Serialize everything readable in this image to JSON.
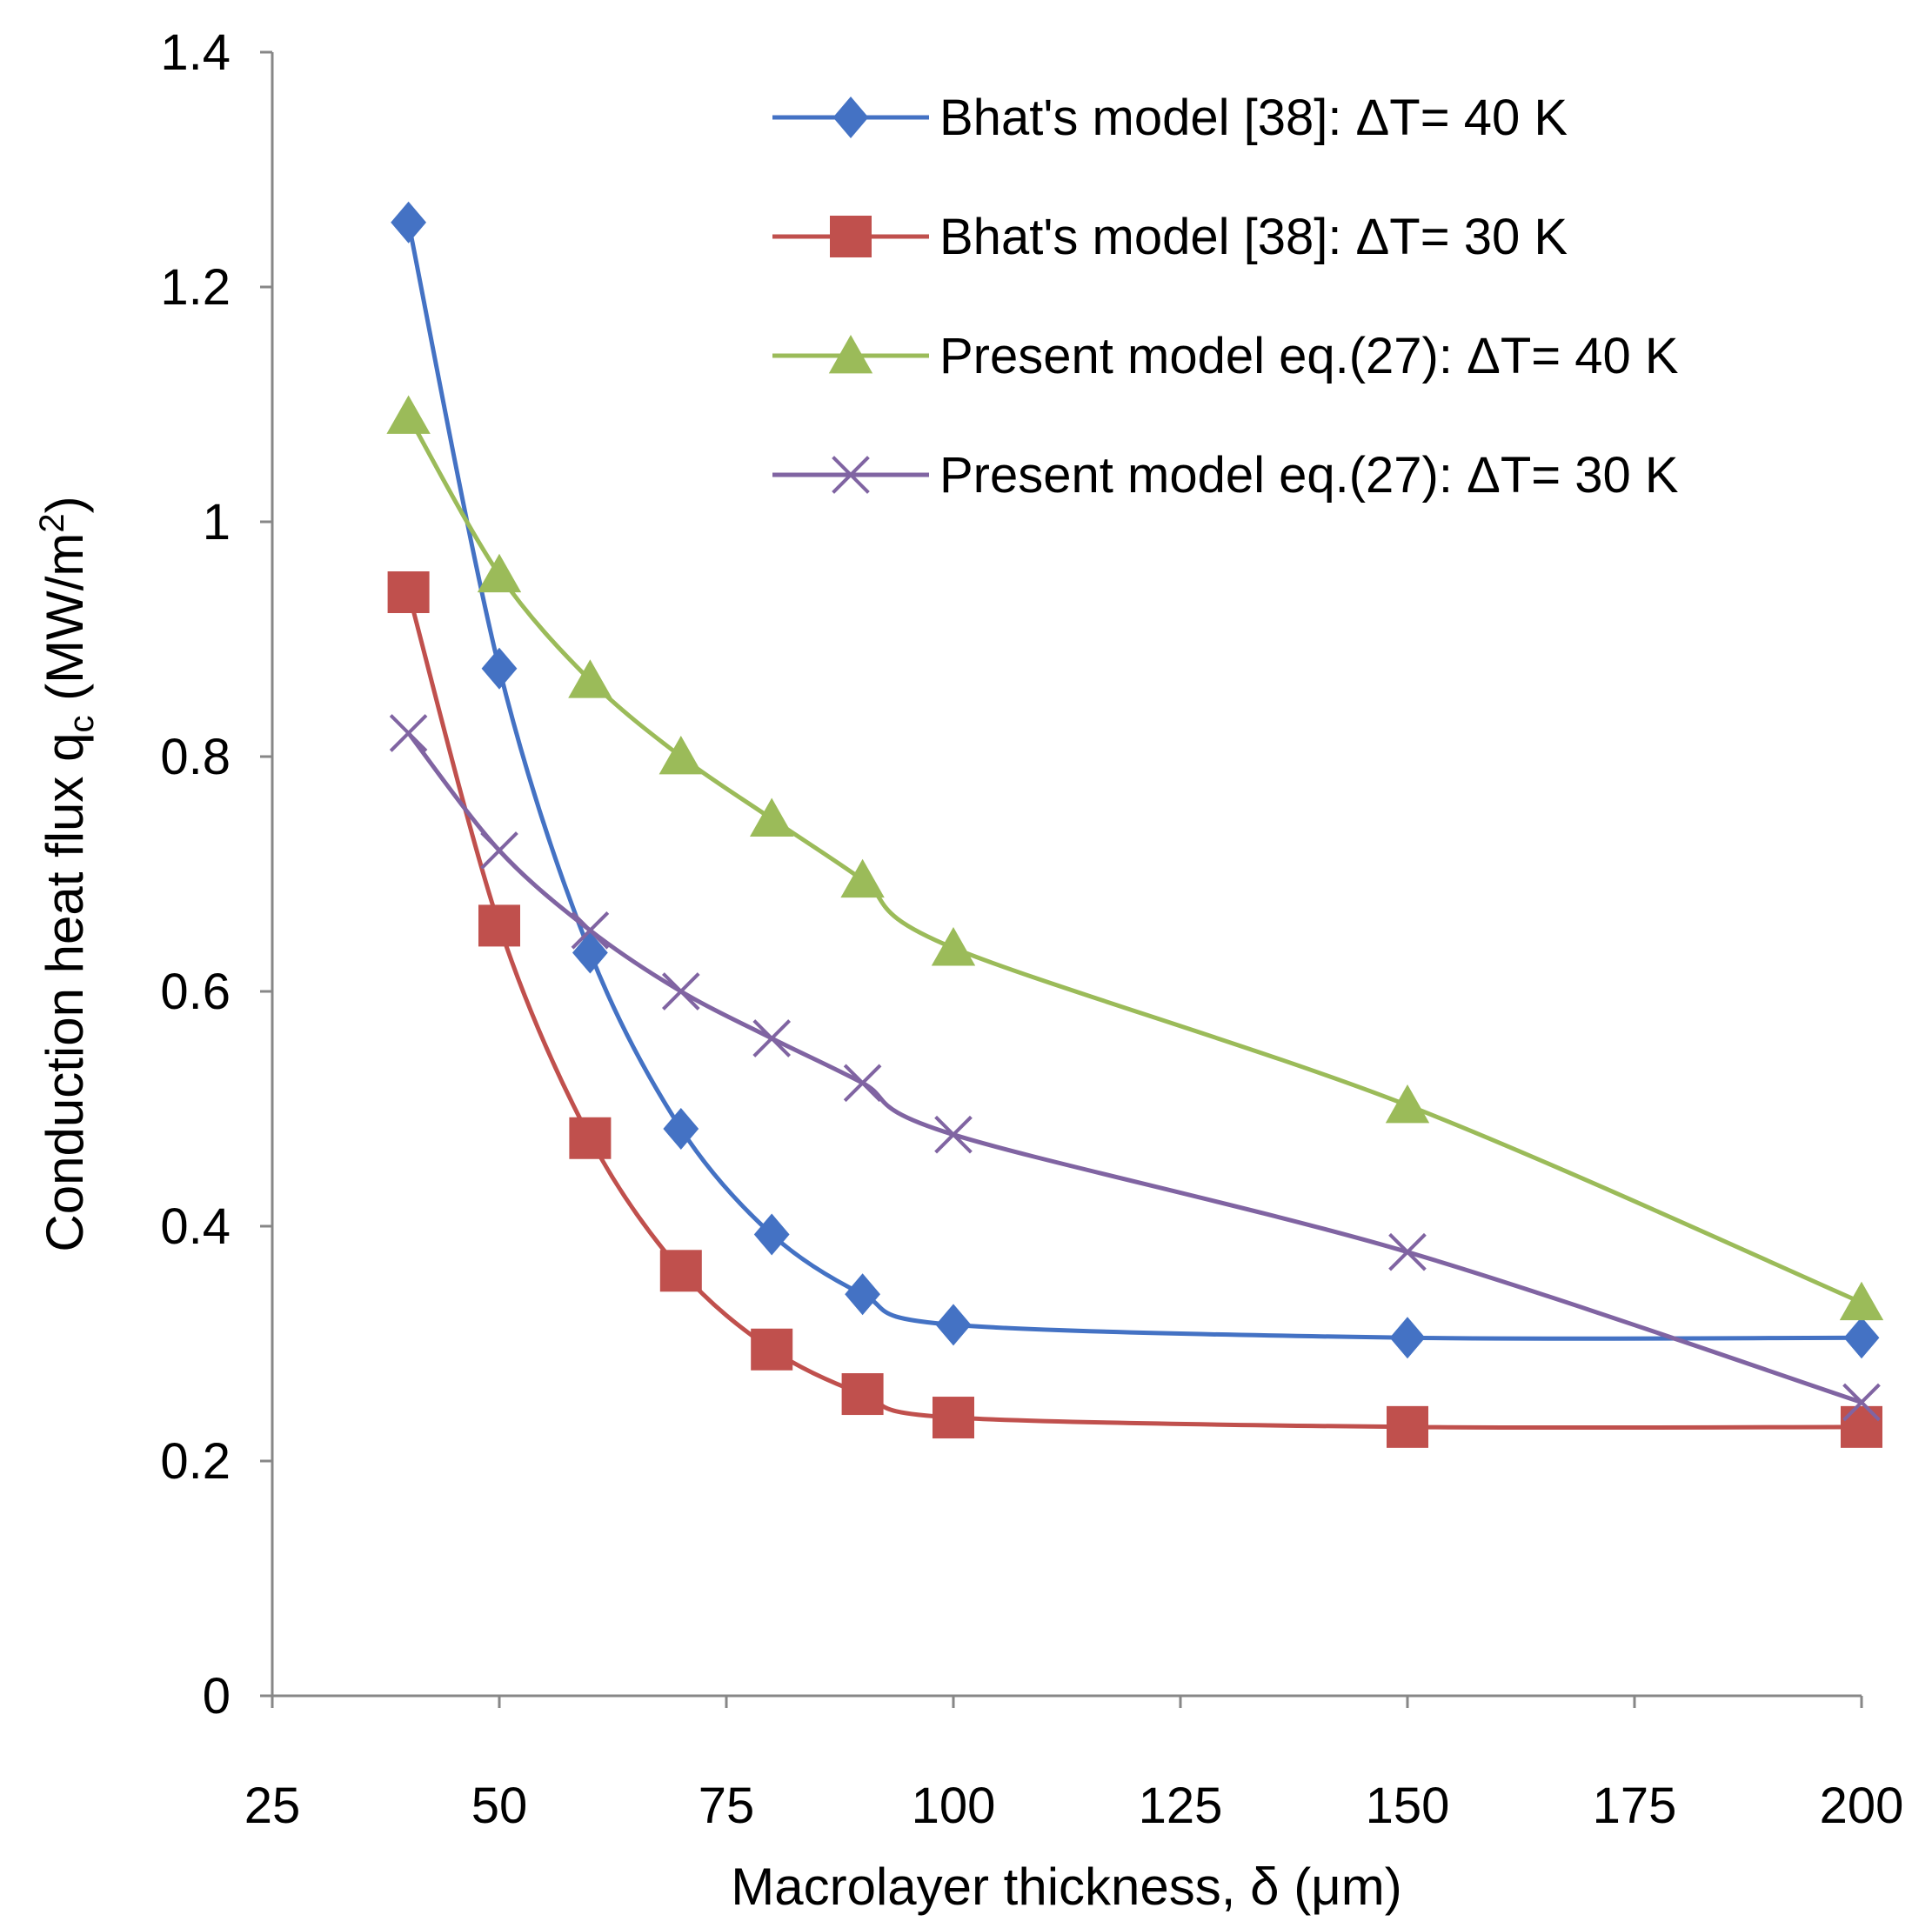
{
  "chart_data": {
    "type": "line",
    "title": "",
    "xlabel": "Macrolayer thickness, δ (μm)",
    "ylabel": "Conduction heat flux q_c (MW/m²)",
    "ylabel_parts": {
      "main": "Conduction heat flux q",
      "sub": "c",
      "unit_open": " (MW/m",
      "sup": "2",
      "unit_close": ")"
    },
    "xlim": [
      25,
      200
    ],
    "ylim": [
      0,
      1.4
    ],
    "x_ticks": [
      25,
      50,
      75,
      100,
      125,
      150,
      175,
      200
    ],
    "y_ticks": [
      0,
      0.2,
      0.4,
      0.6,
      0.8,
      1,
      1.2,
      1.4
    ],
    "x_tick_labels": [
      "25",
      "50",
      "75",
      "100",
      "125",
      "150",
      "175",
      "200"
    ],
    "y_tick_labels": [
      "0",
      "0.2",
      "0.4",
      "0.6",
      "0.8",
      "1",
      "1.2",
      "1.4"
    ],
    "grid": false,
    "legend_position": "top-right",
    "series": [
      {
        "name": "Bhat's model [38]: ΔT= 40 K",
        "color": "#4472C4",
        "marker": "diamond",
        "x": [
          40,
          50,
          60,
          70,
          80,
          90,
          100,
          150,
          200
        ],
        "values": [
          1.255,
          0.875,
          0.633,
          0.483,
          0.393,
          0.342,
          0.316,
          0.305,
          0.305
        ]
      },
      {
        "name": "Bhat's model [38]: ΔT= 30 K",
        "color": "#C0504D",
        "marker": "square",
        "x": [
          40,
          50,
          60,
          70,
          80,
          90,
          100,
          150,
          200
        ],
        "values": [
          0.94,
          0.656,
          0.475,
          0.362,
          0.295,
          0.257,
          0.237,
          0.229,
          0.229
        ]
      },
      {
        "name": "Present model eq.(27): ΔT= 40 K",
        "color": "#9BBB59",
        "marker": "triangle",
        "x": [
          40,
          50,
          60,
          70,
          80,
          90,
          100,
          150,
          200
        ],
        "values": [
          1.09,
          0.955,
          0.865,
          0.8,
          0.747,
          0.695,
          0.637,
          0.503,
          0.335
        ]
      },
      {
        "name": "Present model eq.(27): ΔT= 30 K",
        "color": "#8064A2",
        "marker": "x",
        "x": [
          40,
          50,
          60,
          70,
          80,
          90,
          100,
          150,
          200
        ],
        "values": [
          0.82,
          0.72,
          0.652,
          0.6,
          0.56,
          0.522,
          0.478,
          0.378,
          0.25
        ]
      }
    ]
  }
}
